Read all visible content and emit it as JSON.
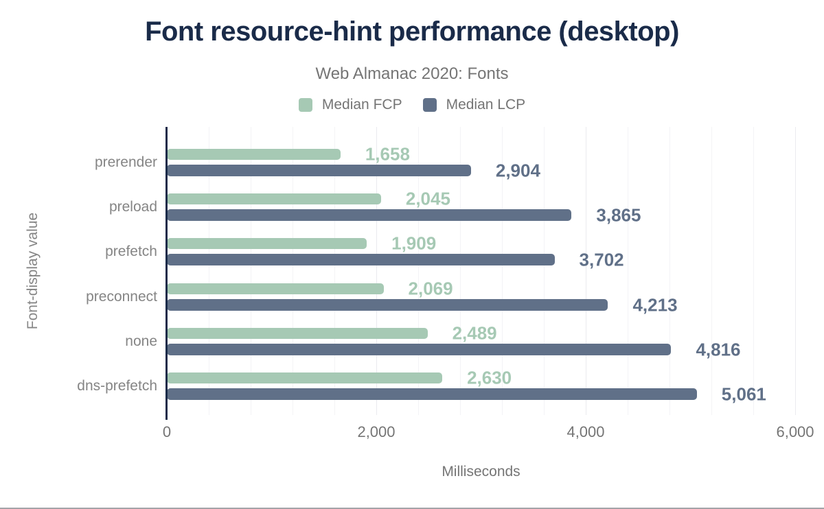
{
  "chart_data": {
    "type": "bar",
    "orientation": "horizontal",
    "title": "Font resource-hint performance (desktop)",
    "subtitle": "Web Almanac 2020: Fonts",
    "xlabel": "Milliseconds",
    "ylabel": "Font-display value",
    "xlim": [
      0,
      6000
    ],
    "x_ticks": [
      {
        "value": 0,
        "label": "0"
      },
      {
        "value": 2000,
        "label": "2,000"
      },
      {
        "value": 4000,
        "label": "4,000"
      },
      {
        "value": 6000,
        "label": "6,000"
      }
    ],
    "grid": {
      "visible": true,
      "minor_step_ms": 400,
      "major_step_ms": 2000
    },
    "legend_position": "top",
    "categories": [
      "prerender",
      "preload",
      "prefetch",
      "preconnect",
      "none",
      "dns-prefetch"
    ],
    "series": [
      {
        "name": "Median FCP",
        "color": "#a6c9b4",
        "values": [
          1658,
          2045,
          1909,
          2069,
          2489,
          2630
        ],
        "value_labels": [
          "1,658",
          "2,045",
          "1,909",
          "2,069",
          "2,489",
          "2,630"
        ]
      },
      {
        "name": "Median LCP",
        "color": "#607088",
        "values": [
          2904,
          3865,
          3702,
          4213,
          4816,
          5061
        ],
        "value_labels": [
          "2,904",
          "3,865",
          "3,702",
          "4,213",
          "4,816",
          "5,061"
        ]
      }
    ]
  },
  "colors": {
    "title_text": "#1a2b49",
    "subtitle_text": "#757575",
    "axis_text": "#757575",
    "category_text": "#858585",
    "grid_minor": "#f3f3f6",
    "grid_major": "#eaeaef",
    "axis_line": "#1a2b49",
    "background": "#ffffff",
    "bottom_border": "#a3a3a8"
  }
}
